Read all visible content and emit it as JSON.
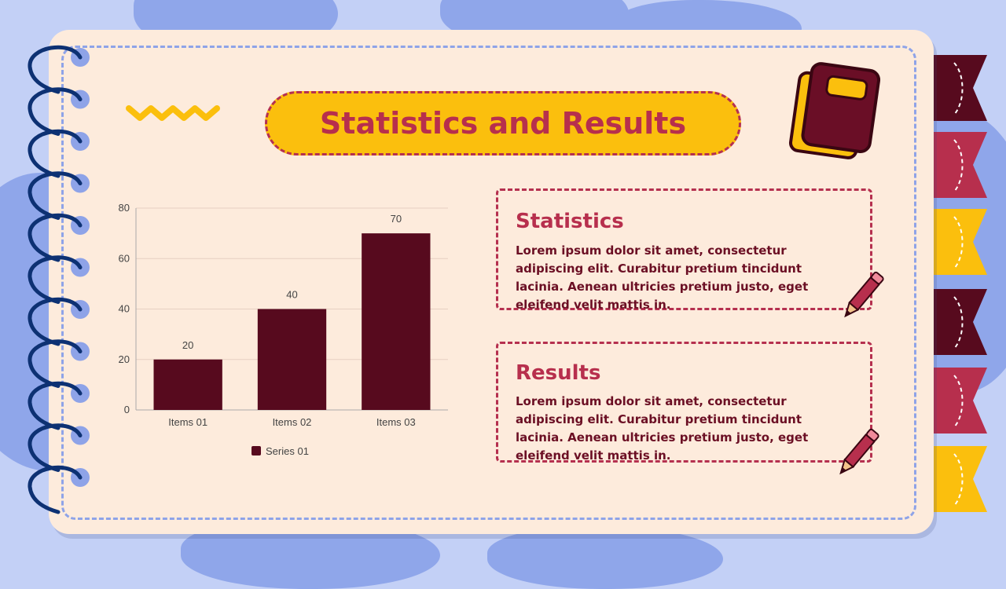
{
  "slide": {
    "title": "Statistics and Results"
  },
  "sections": [
    {
      "heading": "Statistics",
      "body": "Lorem ipsum dolor sit amet, consectetur adipiscing elit. Curabitur pretium tincidunt lacinia. Aenean ultricies pretium justo, eget eleifend velit mattis in."
    },
    {
      "heading": "Results",
      "body": "Lorem ipsum dolor sit amet, consectetur adipiscing elit. Curabitur pretium tincidunt lacinia. Aenean ultricies pretium justo, eget eleifend velit mattis in."
    }
  ],
  "colors": {
    "accent": "#b72f4d",
    "bar": "#570a1e",
    "yellow": "#fbbf0d",
    "paper": "#fdebdc",
    "spiral": "#0d3173"
  },
  "icons": [
    "spiral-binding-icon",
    "zigzag-icon",
    "book-icon",
    "pencil-icon",
    "bookmark-tab-icon"
  ],
  "chart_data": {
    "type": "bar",
    "title": "",
    "xlabel": "",
    "ylabel": "",
    "categories": [
      "Items 01",
      "Items 02",
      "Items 03"
    ],
    "series": [
      {
        "name": "Series 01",
        "values": [
          20,
          40,
          70
        ],
        "color": "#570a1e"
      }
    ],
    "ylim": [
      0,
      80
    ],
    "yticks": [
      0,
      20,
      40,
      60,
      80
    ],
    "data_labels": true,
    "grid": true,
    "legend": "bottom"
  }
}
